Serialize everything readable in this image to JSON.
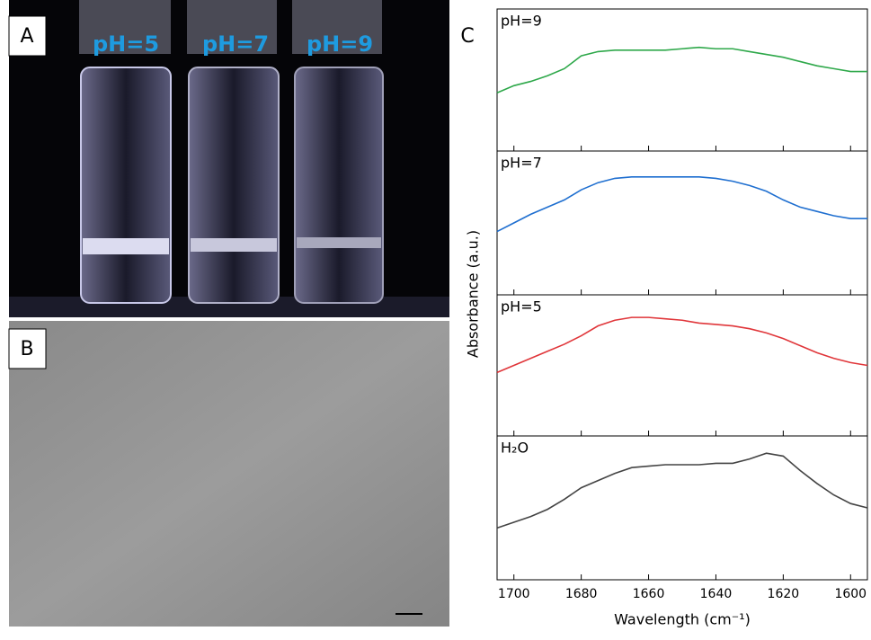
{
  "figure": {
    "panel_labels": [
      "A",
      "B",
      "C"
    ],
    "vial_labels": [
      "pH=5",
      "pH=7",
      "pH=9"
    ],
    "y_label": "Absorbance (a.u.)"
  },
  "chart_data": [
    {
      "type": "line",
      "title": "pH=9",
      "color": "#2ea84a",
      "x": [
        1705,
        1700,
        1695,
        1690,
        1685,
        1680,
        1675,
        1670,
        1665,
        1660,
        1655,
        1650,
        1645,
        1640,
        1635,
        1630,
        1625,
        1620,
        1615,
        1610,
        1605,
        1600,
        1595
      ],
      "values": [
        0.41,
        0.46,
        0.49,
        0.53,
        0.58,
        0.67,
        0.7,
        0.71,
        0.71,
        0.71,
        0.71,
        0.72,
        0.73,
        0.72,
        0.72,
        0.7,
        0.68,
        0.66,
        0.63,
        0.6,
        0.58,
        0.56,
        0.56
      ],
      "xlim": [
        1705,
        1595
      ],
      "ylim": [
        0,
        1
      ],
      "xticks": [
        1700,
        1680,
        1660,
        1640,
        1620,
        1600
      ]
    },
    {
      "type": "line",
      "title": "pH=7",
      "color": "#1f6fd0",
      "x": [
        1705,
        1700,
        1695,
        1690,
        1685,
        1680,
        1675,
        1670,
        1665,
        1660,
        1655,
        1650,
        1645,
        1640,
        1635,
        1630,
        1625,
        1620,
        1615,
        1610,
        1605,
        1600,
        1595
      ],
      "values": [
        0.44,
        0.5,
        0.56,
        0.61,
        0.66,
        0.73,
        0.78,
        0.81,
        0.82,
        0.82,
        0.82,
        0.82,
        0.82,
        0.81,
        0.79,
        0.76,
        0.72,
        0.66,
        0.61,
        0.58,
        0.55,
        0.53,
        0.53
      ],
      "xlim": [
        1705,
        1595
      ],
      "ylim": [
        0,
        1
      ],
      "xticks": [
        1700,
        1680,
        1660,
        1640,
        1620,
        1600
      ]
    },
    {
      "type": "line",
      "title": "pH=5",
      "color": "#e0363a",
      "x": [
        1705,
        1700,
        1695,
        1690,
        1685,
        1680,
        1675,
        1670,
        1665,
        1660,
        1655,
        1650,
        1645,
        1640,
        1635,
        1630,
        1625,
        1620,
        1615,
        1610,
        1605,
        1600,
        1595
      ],
      "values": [
        0.45,
        0.5,
        0.55,
        0.6,
        0.65,
        0.71,
        0.78,
        0.82,
        0.84,
        0.84,
        0.83,
        0.82,
        0.8,
        0.79,
        0.78,
        0.76,
        0.73,
        0.69,
        0.64,
        0.59,
        0.55,
        0.52,
        0.5
      ],
      "xlim": [
        1705,
        1595
      ],
      "ylim": [
        0,
        1
      ],
      "xticks": [
        1700,
        1680,
        1660,
        1640,
        1620,
        1600
      ]
    },
    {
      "type": "line",
      "title": "H₂O",
      "color": "#444444",
      "x_label": "Wavelength (cm⁻¹)",
      "x": [
        1705,
        1700,
        1695,
        1690,
        1685,
        1680,
        1675,
        1670,
        1665,
        1660,
        1655,
        1650,
        1645,
        1640,
        1635,
        1630,
        1625,
        1620,
        1615,
        1610,
        1605,
        1600,
        1595
      ],
      "values": [
        0.36,
        0.4,
        0.44,
        0.49,
        0.56,
        0.64,
        0.69,
        0.74,
        0.78,
        0.79,
        0.8,
        0.8,
        0.8,
        0.81,
        0.81,
        0.84,
        0.88,
        0.86,
        0.76,
        0.67,
        0.59,
        0.53,
        0.5
      ],
      "xlim": [
        1705,
        1595
      ],
      "ylim": [
        0,
        1
      ],
      "xticks": [
        1700,
        1680,
        1660,
        1640,
        1620,
        1600
      ]
    }
  ]
}
